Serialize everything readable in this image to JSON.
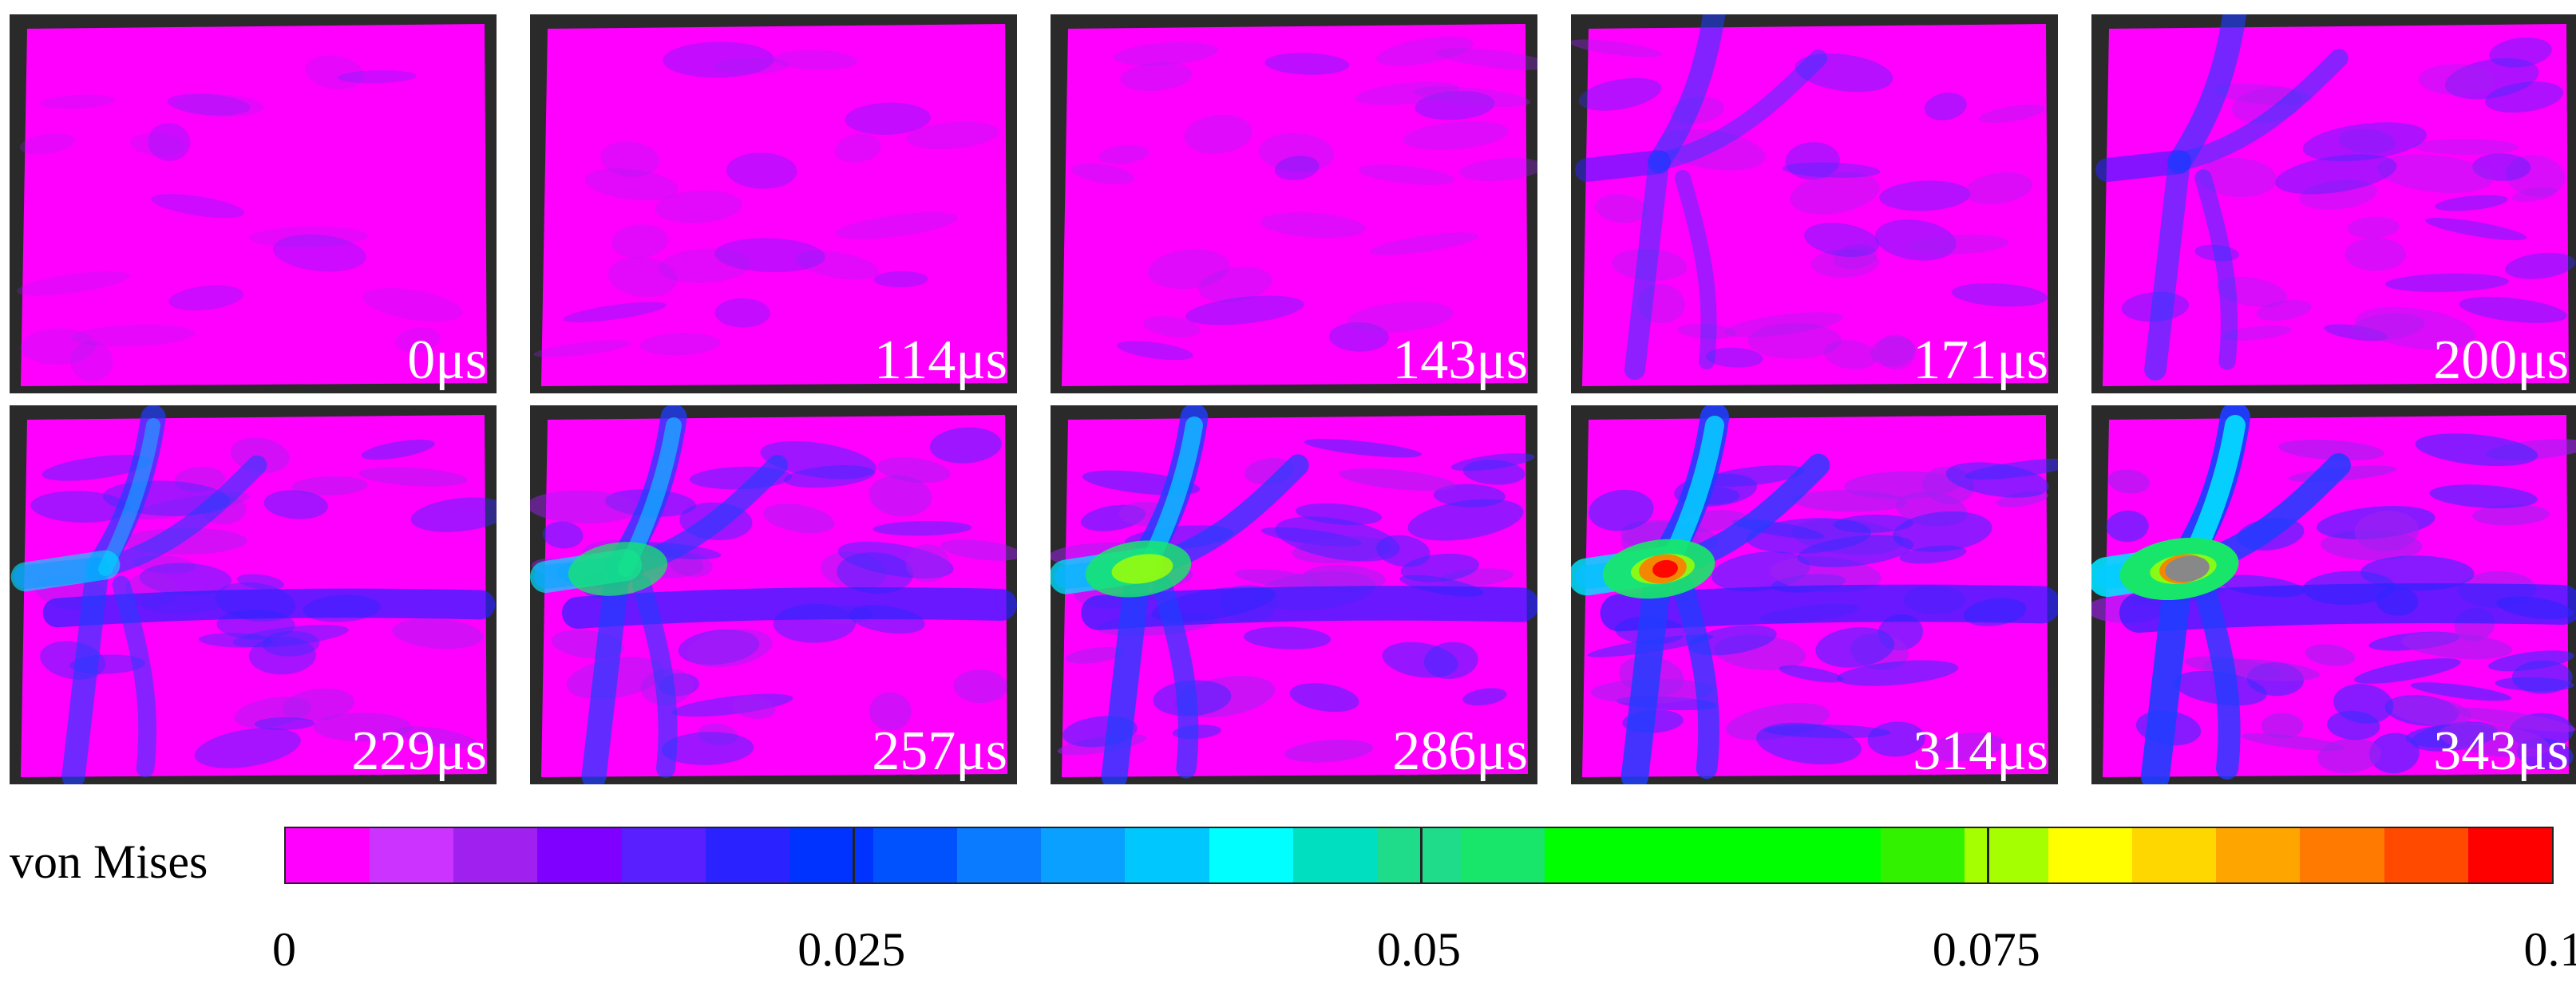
{
  "panels": [
    {
      "label": "0μs"
    },
    {
      "label": "114μs"
    },
    {
      "label": "143μs"
    },
    {
      "label": "171μs"
    },
    {
      "label": "200μs"
    },
    {
      "label": "229μs"
    },
    {
      "label": "257μs"
    },
    {
      "label": "286μs"
    },
    {
      "label": "314μs"
    },
    {
      "label": "343μs"
    }
  ],
  "colorbar": {
    "title": "von Mises",
    "min": 0,
    "max": 0.1,
    "ticks": [
      {
        "value": 0,
        "label": "0"
      },
      {
        "value": 0.025,
        "label": "0.025"
      },
      {
        "value": 0.05,
        "label": "0.05"
      },
      {
        "value": 0.075,
        "label": "0.075"
      },
      {
        "value": 0.1,
        "label": "0.1"
      }
    ],
    "colors": [
      "#ff00ff",
      "#cc33ff",
      "#a020f0",
      "#7f00ff",
      "#5a1fff",
      "#2a22ff",
      "#0033ff",
      "#0052ff",
      "#0a7bff",
      "#0aa0ff",
      "#00c8ff",
      "#00ffff",
      "#00e0c0",
      "#1fdc8a",
      "#18e66a",
      "#00ff00",
      "#00ff00",
      "#00ff00",
      "#00ff00",
      "#33f200",
      "#a6ff00",
      "#ffff00",
      "#ffd700",
      "#ffa500",
      "#ff7a00",
      "#ff4a00",
      "#ff0000"
    ]
  }
}
